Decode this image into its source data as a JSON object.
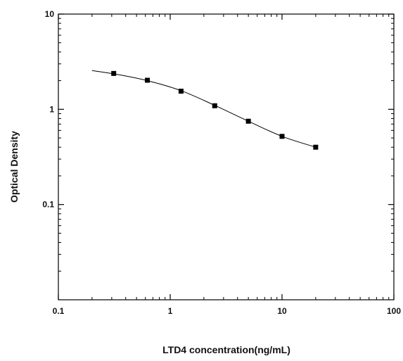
{
  "chart_data": {
    "type": "scatter",
    "title": "",
    "xlabel": "LTD4 concentration(ng/mL)",
    "ylabel": "Optical Density",
    "x_scale": "log",
    "y_scale": "log",
    "xlim": [
      0.1,
      100
    ],
    "ylim": [
      0.01,
      10
    ],
    "x_ticks": [
      "0.1",
      "1",
      "10",
      "100"
    ],
    "y_ticks": [
      "0.1",
      "1",
      "10"
    ],
    "grid": false,
    "legend": "none",
    "series": [
      {
        "marker": "square",
        "x": [
          0.3125,
          0.625,
          1.25,
          2.5,
          5,
          10,
          20
        ],
        "y": [
          2.38,
          2.02,
          1.55,
          1.09,
          0.75,
          0.52,
          0.4
        ]
      }
    ],
    "fit_curve": {
      "x": [
        0.2,
        0.3125,
        0.625,
        1.25,
        2.5,
        5,
        10,
        20
      ],
      "y": [
        2.55,
        2.36,
        2.0,
        1.57,
        1.1,
        0.75,
        0.52,
        0.4
      ]
    },
    "colors": {
      "line": "#000000",
      "marker": "#000000"
    }
  }
}
